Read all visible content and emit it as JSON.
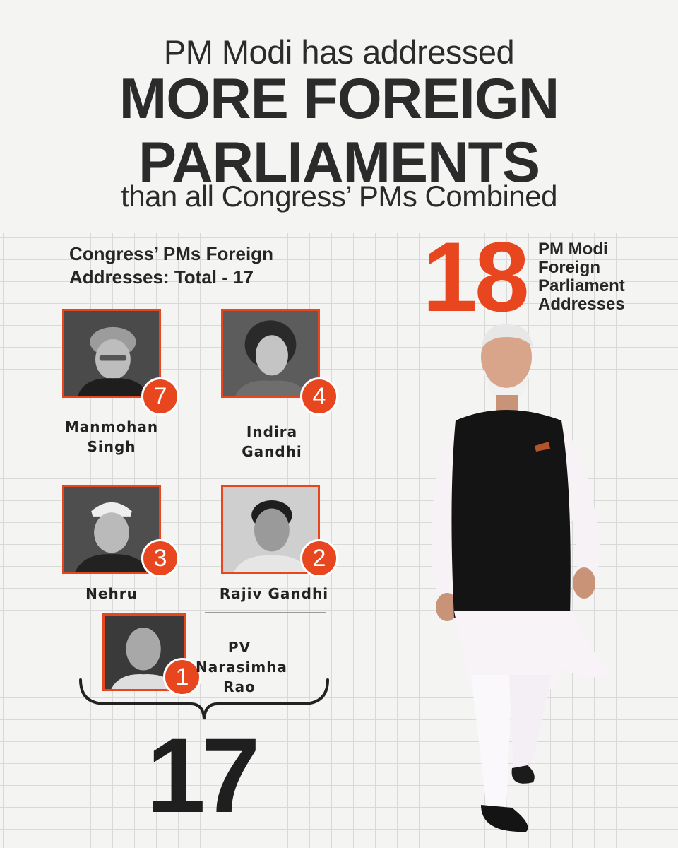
{
  "headline": {
    "line1": "PM Modi has addressed",
    "line2": "MORE FOREIGN",
    "line3": "PARLIAMENTS",
    "line4": "than all Congress’ PMs Combined"
  },
  "congress": {
    "title": "Congress’ PMs Foreign Addresses: Total - 17",
    "total": "17",
    "pms": [
      {
        "name": "Manmohan Singh",
        "count": "7"
      },
      {
        "name": "Indira Gandhi",
        "count": "4"
      },
      {
        "name": "Nehru",
        "count": "3"
      },
      {
        "name": "Rajiv Gandhi",
        "count": "2"
      },
      {
        "name": "PV Narasimha Rao",
        "count": "1"
      }
    ]
  },
  "modi": {
    "count": "18",
    "caption": [
      "PM Modi",
      "Foreign",
      "Parliament",
      "Addresses"
    ]
  },
  "colors": {
    "accent": "#e8461e",
    "text": "#262626",
    "background": "#f4f4f3",
    "grid": "#d9d9d9"
  }
}
